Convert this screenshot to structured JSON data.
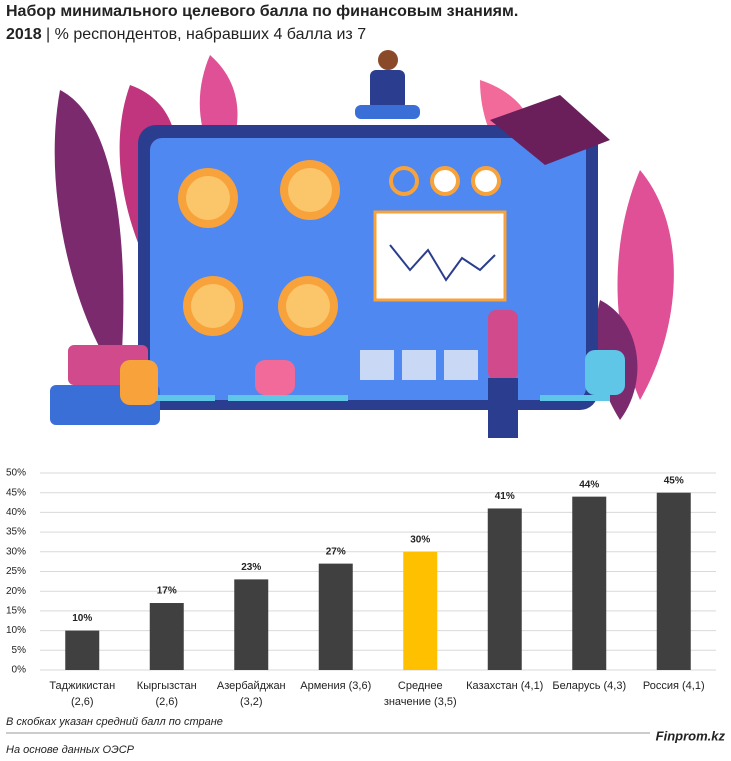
{
  "chart_data": {
    "type": "bar",
    "title": "Набор минимального целевого балла по финансовым знаниям.",
    "subtitle_year": "2018",
    "subtitle": "| % респондентов, набравших 4 балла из 7",
    "categories": [
      [
        "Таджикистан",
        "(2,6)"
      ],
      [
        "Кыргызстан",
        "(2,6)"
      ],
      [
        "Азербайджан",
        "(3,2)"
      ],
      [
        "Армения (3,6)"
      ],
      [
        "Среднее",
        "значение (3,5)"
      ],
      [
        "Казахстан (4,1)"
      ],
      [
        "Беларусь (4,3)"
      ],
      [
        "Россия (4,1)"
      ]
    ],
    "values": [
      10,
      17,
      23,
      27,
      30,
      41,
      44,
      45
    ],
    "value_labels": [
      "10%",
      "17%",
      "23%",
      "27%",
      "30%",
      "41%",
      "44%",
      "45%"
    ],
    "colors": [
      "#404040",
      "#404040",
      "#404040",
      "#404040",
      "#ffc000",
      "#404040",
      "#404040",
      "#404040"
    ],
    "ylim": [
      0,
      50
    ],
    "yticks": [
      {
        "value": 0,
        "label": "0%"
      },
      {
        "value": 5,
        "label": "5%"
      },
      {
        "value": 10,
        "label": "10%"
      },
      {
        "value": 15,
        "label": "15%"
      },
      {
        "value": 20,
        "label": "20%"
      },
      {
        "value": 25,
        "label": "25%"
      },
      {
        "value": 30,
        "label": "30%"
      },
      {
        "value": 35,
        "label": "35%"
      },
      {
        "value": 40,
        "label": "40%"
      },
      {
        "value": 45,
        "label": "45%"
      },
      {
        "value": 50,
        "label": "50%"
      }
    ],
    "grid": true,
    "note": "В скобках указан средний балл по стране",
    "source": "На основе данных ОЭСР",
    "brand": "Finprom.kz"
  }
}
